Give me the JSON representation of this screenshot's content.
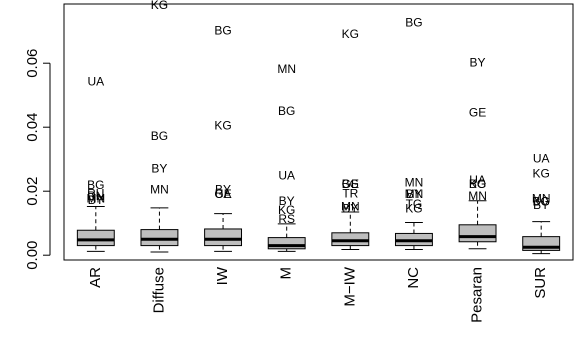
{
  "chart_data": {
    "type": "boxplot",
    "title": "",
    "xlabel": "",
    "ylabel": "",
    "ylim": [
      -0.0015,
      0.0785
    ],
    "y_ticks": [
      "0.00",
      "0.02",
      "0.04",
      "0.06"
    ],
    "y_tick_values": [
      0,
      0.02,
      0.04,
      0.06
    ],
    "box_fill": "#bebebe",
    "categories": [
      "AR",
      "Diffuse",
      "IW",
      "M",
      "M−IW",
      "NC",
      "Pesaran",
      "SUR"
    ],
    "boxes": [
      {
        "category": "AR",
        "whisker_low": 0.0012,
        "q1": 0.003,
        "median": 0.0048,
        "q3": 0.0078,
        "whisker_high": 0.0152,
        "outliers": [
          {
            "label": "UA",
            "value": 0.054
          },
          {
            "label": "BG",
            "value": 0.0217
          },
          {
            "label": "RU",
            "value": 0.019
          },
          {
            "label": "RN",
            "value": 0.0182
          },
          {
            "label": "MN",
            "value": 0.0175
          },
          {
            "label": "BY",
            "value": 0.017
          }
        ]
      },
      {
        "category": "Diffuse",
        "whisker_low": 0.001,
        "q1": 0.003,
        "median": 0.005,
        "q3": 0.008,
        "whisker_high": 0.0148,
        "outliers": [
          {
            "label": "KG",
            "value": 0.078
          },
          {
            "label": "BG",
            "value": 0.037
          },
          {
            "label": "BY",
            "value": 0.0268
          },
          {
            "label": "MN",
            "value": 0.0202
          }
        ]
      },
      {
        "category": "IW",
        "whisker_low": 0.0012,
        "q1": 0.003,
        "median": 0.005,
        "q3": 0.0082,
        "whisker_high": 0.013,
        "outliers": [
          {
            "label": "BG",
            "value": 0.07
          },
          {
            "label": "KG",
            "value": 0.0402
          },
          {
            "label": "BY",
            "value": 0.0203
          },
          {
            "label": "UA",
            "value": 0.0188
          },
          {
            "label": "GE",
            "value": 0.0188
          }
        ]
      },
      {
        "category": "M",
        "whisker_low": 0.0012,
        "q1": 0.002,
        "median": 0.003,
        "q3": 0.0055,
        "whisker_high": 0.0098,
        "outliers": [
          {
            "label": "MN",
            "value": 0.058
          },
          {
            "label": "BG",
            "value": 0.0448
          },
          {
            "label": "UA",
            "value": 0.0247
          },
          {
            "label": "BY",
            "value": 0.0167
          },
          {
            "label": "KG",
            "value": 0.0138
          },
          {
            "label": "RS",
            "value": 0.011
          }
        ]
      },
      {
        "category": "M−IW",
        "whisker_low": 0.0018,
        "q1": 0.003,
        "median": 0.0045,
        "q3": 0.007,
        "whisker_high": 0.0135,
        "outliers": [
          {
            "label": "KG",
            "value": 0.0688
          },
          {
            "label": "BG",
            "value": 0.022
          },
          {
            "label": "GE",
            "value": 0.022
          },
          {
            "label": "TR",
            "value": 0.019
          },
          {
            "label": "MN",
            "value": 0.015
          },
          {
            "label": "BY",
            "value": 0.0143
          }
        ]
      },
      {
        "category": "NC",
        "whisker_low": 0.0018,
        "q1": 0.003,
        "median": 0.0045,
        "q3": 0.0068,
        "whisker_high": 0.0102,
        "outliers": [
          {
            "label": "BG",
            "value": 0.0725
          },
          {
            "label": "MN",
            "value": 0.0225
          },
          {
            "label": "BY",
            "value": 0.0188
          },
          {
            "label": "MN",
            "value": 0.0188
          },
          {
            "label": "TG",
            "value": 0.0158
          },
          {
            "label": "KG",
            "value": 0.0143
          }
        ]
      },
      {
        "category": "Pesaran",
        "whisker_low": 0.002,
        "q1": 0.0042,
        "median": 0.0058,
        "q3": 0.0095,
        "whisker_high": 0.017,
        "outliers": [
          {
            "label": "BY",
            "value": 0.06
          },
          {
            "label": "GE",
            "value": 0.0443
          },
          {
            "label": "UA",
            "value": 0.0232
          },
          {
            "label": "BG",
            "value": 0.022
          },
          {
            "label": "KG",
            "value": 0.022
          },
          {
            "label": "MN",
            "value": 0.0182
          }
        ]
      },
      {
        "category": "SUR",
        "whisker_low": 0.0005,
        "q1": 0.0015,
        "median": 0.0025,
        "q3": 0.0058,
        "whisker_high": 0.0105,
        "outliers": [
          {
            "label": "UA",
            "value": 0.03
          },
          {
            "label": "KG",
            "value": 0.0252
          },
          {
            "label": "MN",
            "value": 0.0175
          },
          {
            "label": "KG",
            "value": 0.0165
          },
          {
            "label": "BG",
            "value": 0.0165
          },
          {
            "label": "BY",
            "value": 0.0155
          }
        ]
      }
    ]
  }
}
